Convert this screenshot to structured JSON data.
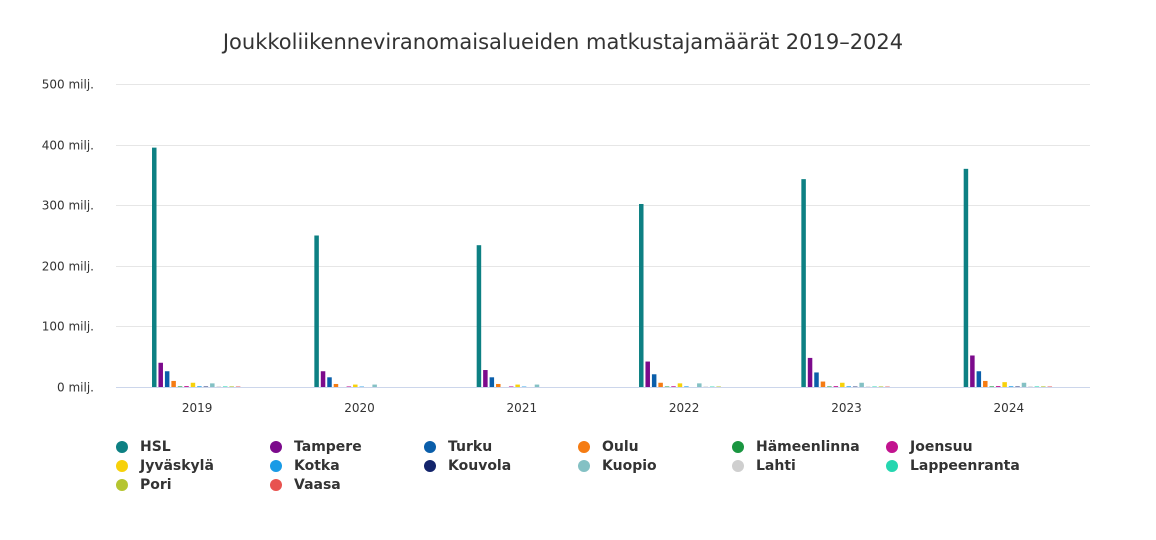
{
  "chart_data": {
    "type": "bar",
    "title": "Joukkoliikenneviranomaisalueiden matkustajamäärät 2019–2024",
    "xlabel": "",
    "ylabel": "",
    "ylim": [
      0,
      500
    ],
    "y_ticks": [
      {
        "value": 0,
        "label": "0 milj."
      },
      {
        "value": 100,
        "label": "100 milj."
      },
      {
        "value": 200,
        "label": "200 milj."
      },
      {
        "value": 300,
        "label": "300 milj."
      },
      {
        "value": 400,
        "label": "400 milj."
      },
      {
        "value": 500,
        "label": "500 milj."
      }
    ],
    "grid": true,
    "legend_position": "bottom",
    "categories": [
      "2019",
      "2020",
      "2021",
      "2022",
      "2023",
      "2024"
    ],
    "series": [
      {
        "name": "HSL",
        "color": "#0d8083",
        "values": [
          395,
          250,
          234,
          302,
          343,
          360
        ]
      },
      {
        "name": "Tampere",
        "color": "#7c0a8c",
        "values": [
          40,
          26,
          28,
          42,
          48,
          52
        ]
      },
      {
        "name": "Turku",
        "color": "#0a5eaa",
        "values": [
          26,
          16,
          16,
          21,
          24,
          26
        ]
      },
      {
        "name": "Oulu",
        "color": "#f57c13",
        "values": [
          10,
          5,
          5,
          7,
          9,
          10
        ]
      },
      {
        "name": "Hämeenlinna",
        "color": "#1a9641",
        "values": [
          1,
          0.6,
          0.6,
          0.8,
          0.9,
          1
        ]
      },
      {
        "name": "Joensuu",
        "color": "#c2138f",
        "values": [
          1.5,
          0.9,
          0.9,
          1.2,
          1.4,
          1.5
        ]
      },
      {
        "name": "Jyväskylä",
        "color": "#f7d10a",
        "values": [
          7,
          4,
          4,
          6,
          7,
          8
        ]
      },
      {
        "name": "Kotka",
        "color": "#1a9be6",
        "values": [
          1.2,
          0.7,
          0.7,
          1,
          1.1,
          1.2
        ]
      },
      {
        "name": "Kouvola",
        "color": "#13246b",
        "values": [
          0.8,
          0.5,
          0.5,
          0.6,
          0.7,
          0.8
        ]
      },
      {
        "name": "Kuopio",
        "color": "#84c1c4",
        "values": [
          6,
          4,
          4,
          6,
          7,
          7
        ]
      },
      {
        "name": "Lahti",
        "color": "#cfcfcf",
        "values": [
          1,
          0.6,
          0.6,
          0.8,
          0.9,
          1
        ]
      },
      {
        "name": "Lappeenranta",
        "color": "#25d6b0",
        "values": [
          0.9,
          0.5,
          0.5,
          0.7,
          0.8,
          0.9
        ]
      },
      {
        "name": "Pori",
        "color": "#b5c530",
        "values": [
          1,
          0.6,
          0.6,
          0.8,
          0.9,
          1
        ]
      },
      {
        "name": "Vaasa",
        "color": "#e8534f",
        "values": [
          0.8,
          0.5,
          0.5,
          0.6,
          0.7,
          0.8
        ]
      }
    ]
  }
}
